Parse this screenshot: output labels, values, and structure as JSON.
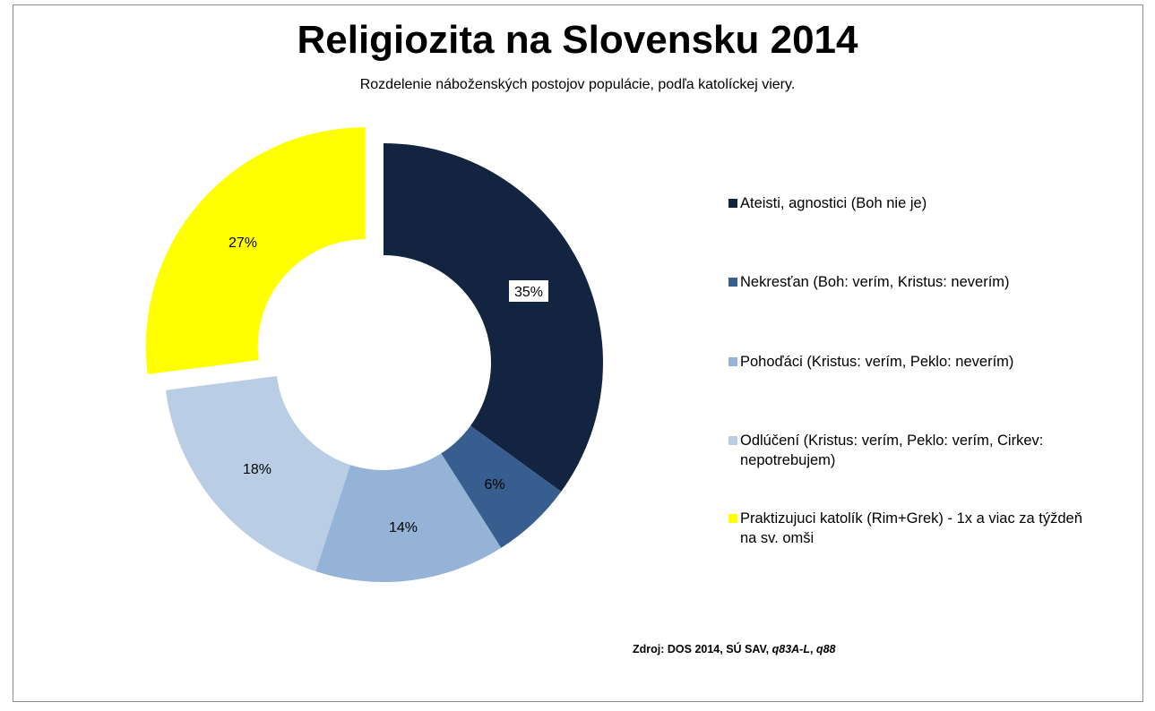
{
  "chart_data": {
    "type": "pie",
    "variant": "donut",
    "title": "Religiozita na Slovensku 2014",
    "subtitle": "Rozdelenie náboženských postojov populácie, podľa katolíckej viery.",
    "slices": [
      {
        "label": "Ateisti, agnostici (Boh nie je)",
        "value": 35,
        "data_label": "35%",
        "color": "#12243f"
      },
      {
        "label": "Nekresťan (Boh: verím, Kristus: neverím)",
        "value": 6,
        "data_label": "6%",
        "color": "#375e8f"
      },
      {
        "label": "Pohoďáci (Kristus: verím, Peklo: neverím)",
        "value": 14,
        "data_label": "14%",
        "color": "#95b3d7"
      },
      {
        "label": "Odlúčení (Kristus: verím, Peklo: verím, Cirkev: nepotrebujem)",
        "value": 18,
        "data_label": "18%",
        "color": "#b9cde5"
      },
      {
        "label": "Praktizujuci katolík (Rim+Grek) - 1x a viac za týždeň na sv. omši",
        "value": 27,
        "data_label": "27%",
        "color": "#ffff00",
        "exploded": true
      }
    ],
    "legend_position": "right"
  },
  "source": {
    "prefix": "Zdroj: DOS 2014, SÚ SAV, ",
    "italic1": "q83A-L",
    "sep": ", ",
    "italic2": "q88"
  }
}
